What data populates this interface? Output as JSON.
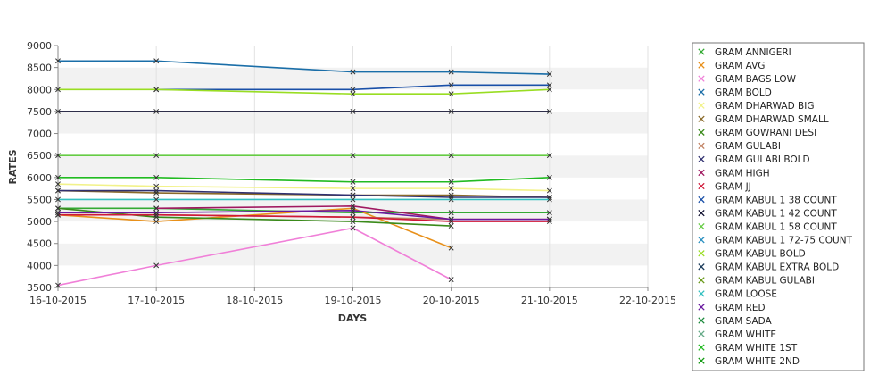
{
  "chart_data": {
    "type": "line",
    "title": "",
    "xlabel": "DAYS",
    "ylabel": "RATES",
    "x_ticks": [
      "16-10-2015",
      "17-10-2015",
      "18-10-2015",
      "19-10-2015",
      "20-10-2015",
      "21-10-2015",
      "22-10-2015"
    ],
    "x": [
      "16-10-2015",
      "17-10-2015",
      "19-10-2015",
      "20-10-2015",
      "21-10-2015"
    ],
    "ylim": [
      3500,
      9000
    ],
    "y_ticks": [
      3500,
      4000,
      4500,
      5000,
      5500,
      6000,
      6500,
      7000,
      7500,
      8000,
      8500,
      9000
    ],
    "grid": "alternating horizontal bands, vertical gridlines",
    "legend_position": "right",
    "marker": "x",
    "series": [
      {
        "name": "GRAM ANNIGERI",
        "color": "#33aa33",
        "values": [
          5300,
          5300,
          5200,
          5200,
          5200
        ]
      },
      {
        "name": "GRAM AVG",
        "color": "#e8901a",
        "values": [
          5150,
          5000,
          5300,
          4400,
          null
        ]
      },
      {
        "name": "GRAM BAGS LOW",
        "color": "#f080d8",
        "values": [
          3550,
          4000,
          4850,
          3680,
          null
        ]
      },
      {
        "name": "GRAM BOLD",
        "color": "#1a6ea8",
        "values": [
          8650,
          8650,
          8400,
          8400,
          8350
        ]
      },
      {
        "name": "GRAM DHARWAD BIG",
        "color": "#f2f28a",
        "values": [
          5850,
          5800,
          5750,
          5750,
          5700
        ]
      },
      {
        "name": "GRAM DHARWAD SMALL",
        "color": "#8a6a2a",
        "values": [
          5700,
          5650,
          5600,
          5600,
          5550
        ]
      },
      {
        "name": "GRAM GOWRANI DESI",
        "color": "#3a8a1a",
        "values": [
          5300,
          5100,
          5000,
          4900,
          null
        ]
      },
      {
        "name": "GRAM GULABI",
        "color": "#c08060",
        "values": [
          5150,
          5150,
          5100,
          5050,
          5050
        ]
      },
      {
        "name": "GRAM GULABI BOLD",
        "color": "#303070",
        "values": [
          5700,
          5700,
          5600,
          5550,
          5550
        ]
      },
      {
        "name": "GRAM HIGH",
        "color": "#a01860",
        "values": [
          null,
          5300,
          5350,
          5050,
          5050
        ]
      },
      {
        "name": "GRAM JJ",
        "color": "#d01838",
        "values": [
          5150,
          5150,
          5100,
          5000,
          5000
        ]
      },
      {
        "name": "GRAM KABUL 1 38 COUNT",
        "color": "#1a50a8",
        "values": [
          null,
          8000,
          8000,
          8100,
          8100
        ]
      },
      {
        "name": "GRAM KABUL 1 42 COUNT",
        "color": "#101030",
        "values": [
          7500,
          7500,
          7500,
          7500,
          7500
        ]
      },
      {
        "name": "GRAM KABUL 1 58 COUNT",
        "color": "#66cc44",
        "values": [
          6500,
          6500,
          6500,
          6500,
          6500
        ]
      },
      {
        "name": "GRAM KABUL 1 72-75 COUNT",
        "color": "#2a90c0",
        "values": [
          null,
          null,
          null,
          null,
          null
        ]
      },
      {
        "name": "GRAM KABUL BOLD",
        "color": "#99dd22",
        "values": [
          8000,
          8000,
          7900,
          7900,
          8000
        ]
      },
      {
        "name": "GRAM KABUL EXTRA BOLD",
        "color": "#1a3a5a",
        "values": [
          null,
          null,
          null,
          null,
          null
        ]
      },
      {
        "name": "GRAM KABUL GULABI",
        "color": "#6a9a1a",
        "values": [
          null,
          null,
          null,
          null,
          null
        ]
      },
      {
        "name": "GRAM LOOSE",
        "color": "#33c0c0",
        "values": [
          5500,
          5500,
          5500,
          5500,
          5500
        ]
      },
      {
        "name": "GRAM RED",
        "color": "#6a1aa0",
        "values": [
          5200,
          5200,
          5250,
          5050,
          5050
        ]
      },
      {
        "name": "GRAM SADA",
        "color": "#1a8a3a",
        "values": [
          null,
          null,
          null,
          null,
          null
        ]
      },
      {
        "name": "GRAM WHITE",
        "color": "#66aa88",
        "values": [
          null,
          null,
          null,
          null,
          null
        ]
      },
      {
        "name": "GRAM WHITE 1ST",
        "color": "#22bb22",
        "values": [
          6000,
          6000,
          5900,
          5900,
          6000
        ]
      },
      {
        "name": "GRAM WHITE 2ND",
        "color": "#119911",
        "values": [
          null,
          null,
          null,
          null,
          null
        ]
      }
    ]
  }
}
